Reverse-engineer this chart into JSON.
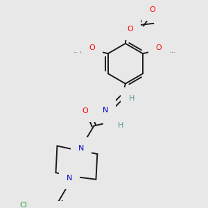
{
  "bg_color": "#e8e8e8",
  "bond_color": "#1a1a1a",
  "bond_width": 1.4,
  "figsize": [
    3.0,
    3.0
  ],
  "dpi": 100,
  "colors": {
    "O": "#ff0000",
    "N": "#0000cc",
    "Cl": "#2ca02c",
    "H": "#5a9a9a",
    "C": "#1a1a1a"
  }
}
